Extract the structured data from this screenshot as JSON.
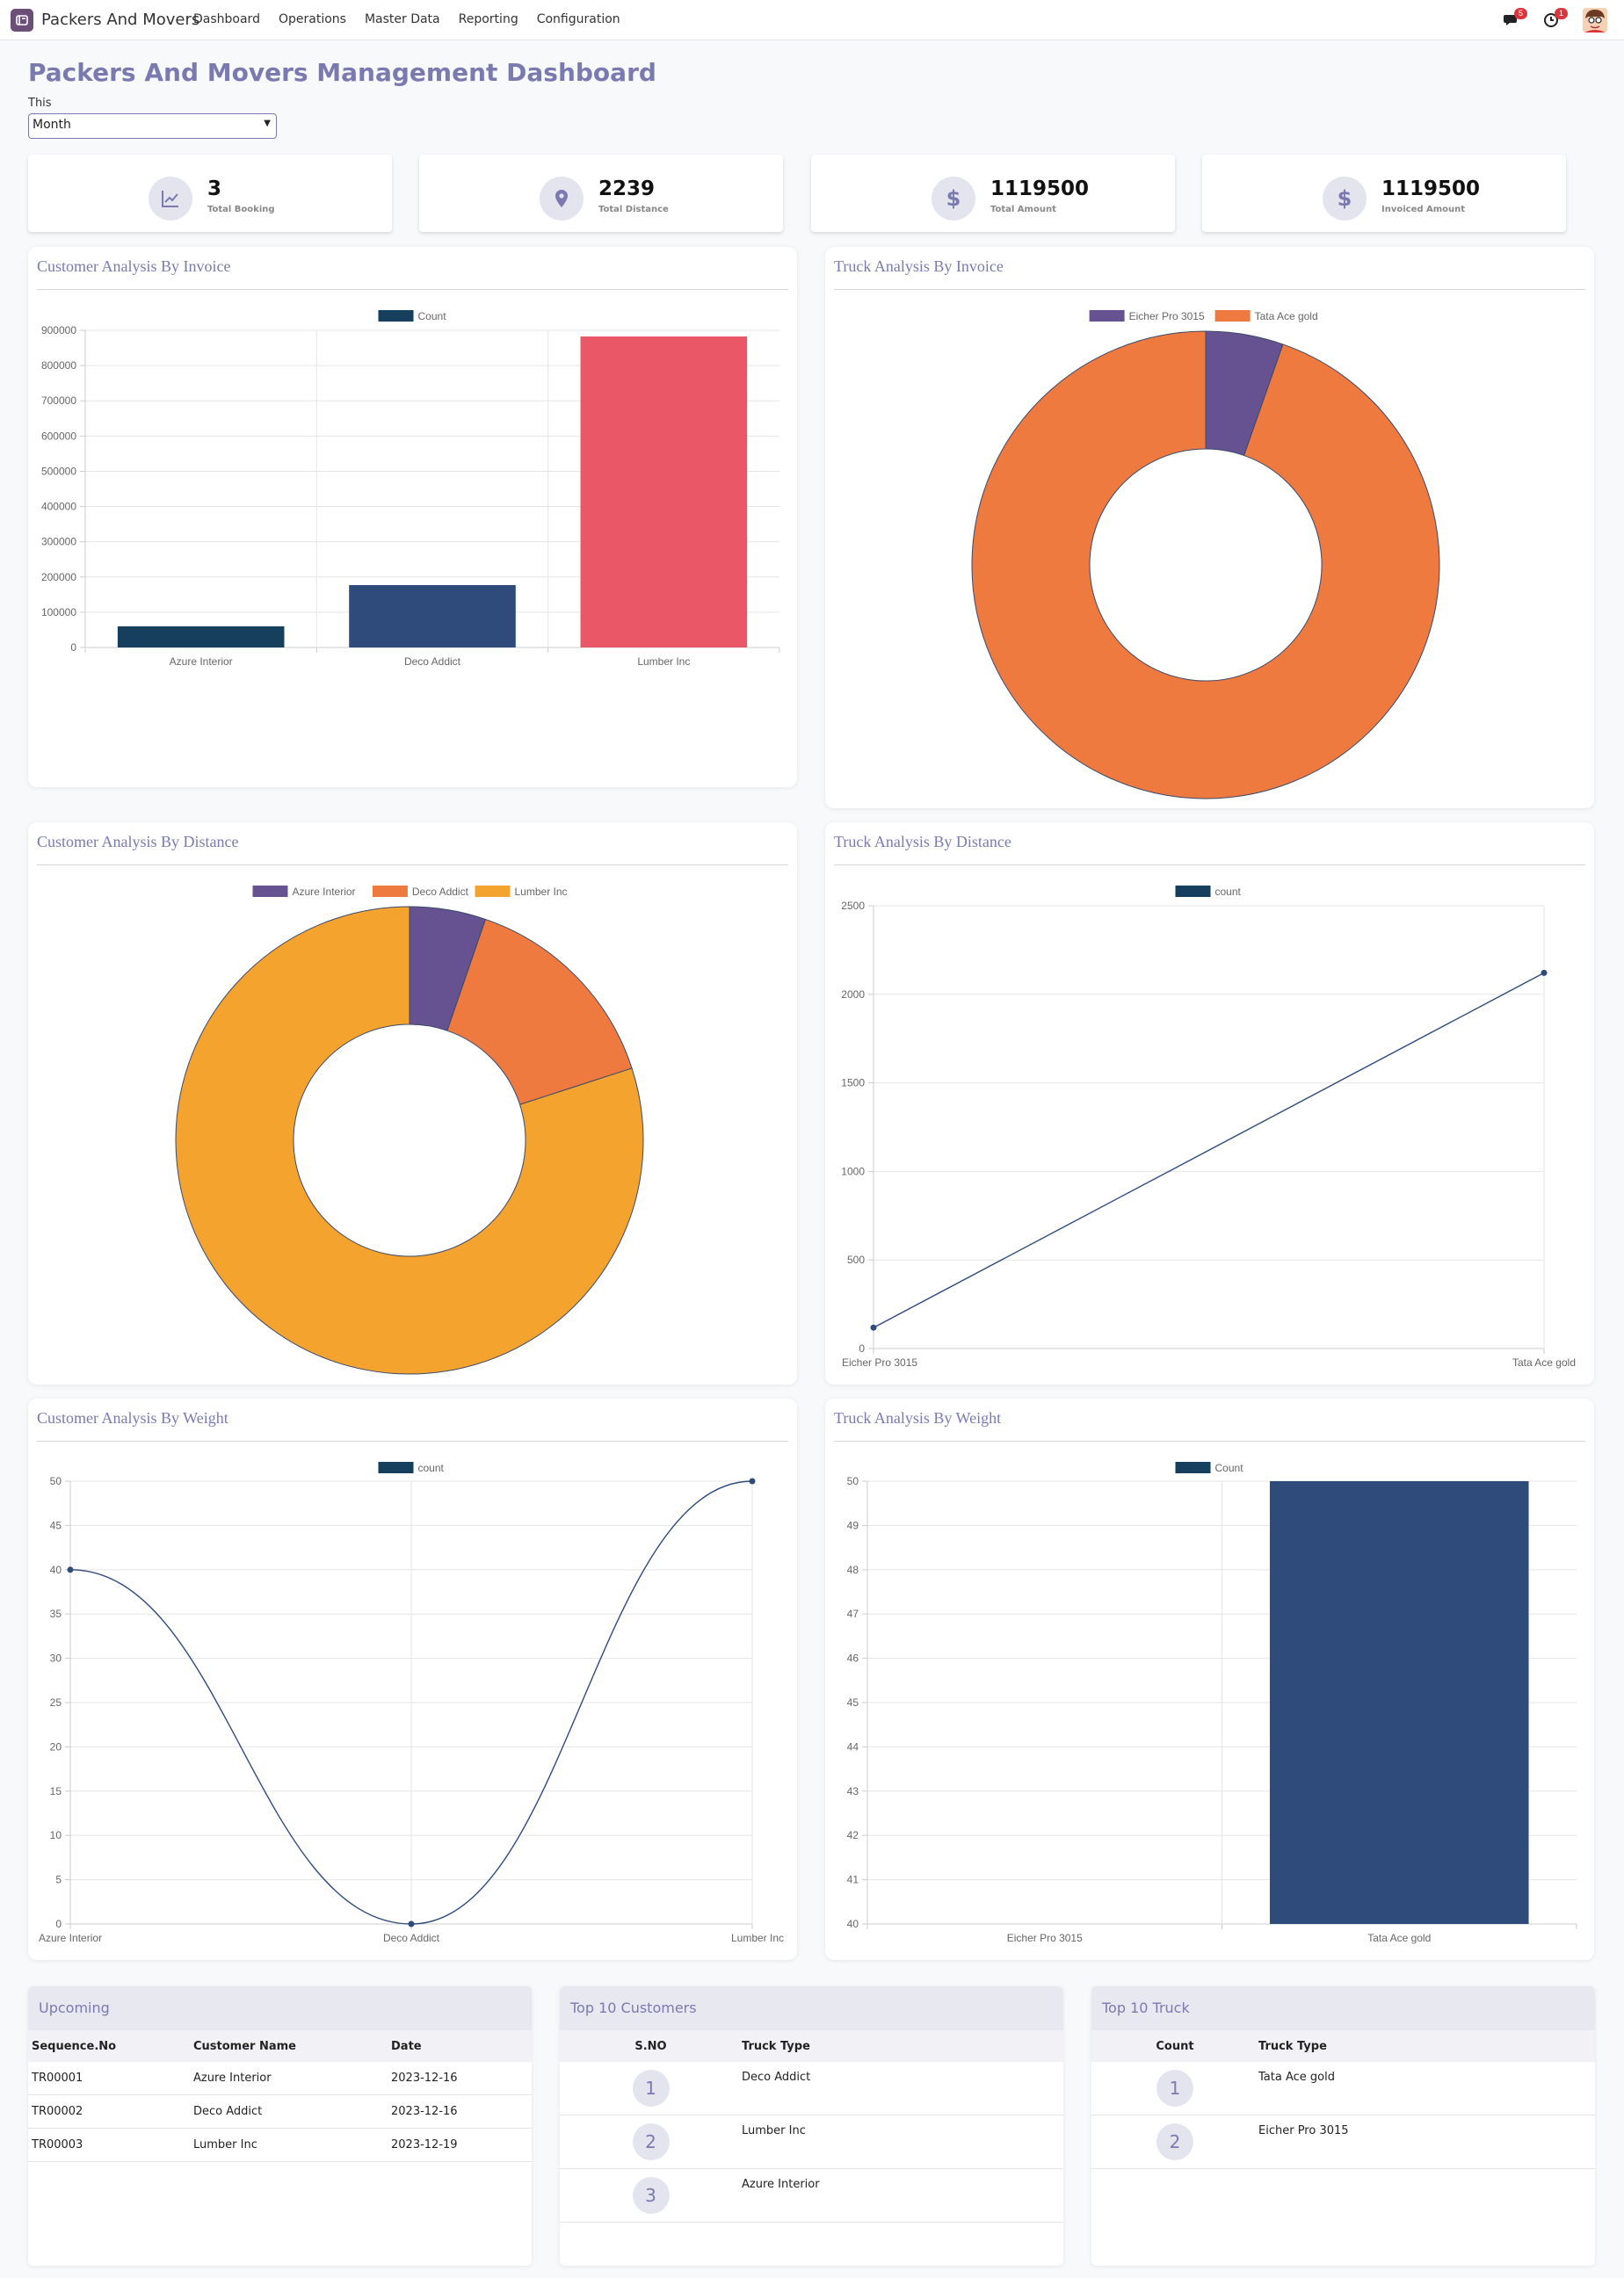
{
  "app": {
    "name": "Packers And Movers",
    "menu": [
      "Dashboard",
      "Operations",
      "Master Data",
      "Reporting",
      "Configuration"
    ],
    "chat_badge": "5",
    "activity_badge": "1"
  },
  "page": {
    "title": "Packers And Movers Management Dashboard",
    "filter_label": "This",
    "filter_value": "Month"
  },
  "kpis": [
    {
      "value": "3",
      "label": "Total Booking",
      "icon": "chart-line-icon"
    },
    {
      "value": "2239",
      "label": "Total Distance",
      "icon": "map-pin-icon"
    },
    {
      "value": "1119500",
      "label": "Total Amount",
      "icon": "dollar-icon"
    },
    {
      "value": "1119500",
      "label": "Invoiced Amount",
      "icon": "dollar-icon"
    }
  ],
  "colors": {
    "accent": "#7a7ab0",
    "navy": "#163f5e",
    "blue": "#2f4b7c",
    "red": "#ea5867",
    "purple": "#665191",
    "orange": "#ee7a40",
    "amber": "#f4a32e"
  },
  "chart_titles": {
    "c1": "Customer Analysis By Invoice",
    "c2": "Truck Analysis By Invoice",
    "c3": "Customer Analysis By Distance",
    "c4": "Truck Analysis By Distance",
    "c5": "Customer Analysis By Weight",
    "c6": "Truck Analysis By Weight"
  },
  "chart_data": [
    {
      "type": "bar",
      "title": "Customer Analysis By Invoice",
      "legend": [
        "Count"
      ],
      "categories": [
        "Azure Interior",
        "Deco Addict",
        "Lumber Inc"
      ],
      "values": [
        60000,
        177000,
        882500
      ],
      "colors": [
        "#163f5e",
        "#2f4b7c",
        "#ea5867"
      ],
      "ylim": [
        0,
        900000
      ],
      "yticks": [
        0,
        100000,
        200000,
        300000,
        400000,
        500000,
        600000,
        700000,
        800000,
        900000
      ],
      "grid": true,
      "legend_position": "top"
    },
    {
      "type": "pie",
      "title": "Truck Analysis By Invoice",
      "labels": [
        "Eicher Pro 3015",
        "Tata Ace gold"
      ],
      "values": [
        60000,
        1059500
      ],
      "colors": [
        "#665191",
        "#ee7a40"
      ],
      "donut": true,
      "legend_position": "top"
    },
    {
      "type": "pie",
      "title": "Customer Analysis By Distance",
      "labels": [
        "Azure Interior",
        "Deco Addict",
        "Lumber Inc"
      ],
      "values": [
        118,
        330,
        1791
      ],
      "colors": [
        "#665191",
        "#ee7a40",
        "#f4a32e"
      ],
      "donut": true,
      "legend_position": "top"
    },
    {
      "type": "line",
      "title": "Truck Analysis By Distance",
      "legend": [
        "count"
      ],
      "categories": [
        "Eicher Pro 3015",
        "Tata Ace gold"
      ],
      "values": [
        118,
        2121
      ],
      "ylim": [
        0,
        2500
      ],
      "yticks": [
        0,
        500,
        1000,
        1500,
        2000,
        2500
      ],
      "grid": true,
      "legend_position": "top"
    },
    {
      "type": "line",
      "title": "Customer Analysis By Weight",
      "legend": [
        "count"
      ],
      "categories": [
        "Azure Interior",
        "Deco Addict",
        "Lumber Inc"
      ],
      "values": [
        40,
        0,
        50
      ],
      "ylim": [
        0,
        50
      ],
      "yticks": [
        0,
        5,
        10,
        15,
        20,
        25,
        30,
        35,
        40,
        45,
        50
      ],
      "grid": true,
      "smooth": true,
      "legend_position": "top"
    },
    {
      "type": "bar",
      "title": "Truck Analysis By Weight",
      "legend": [
        "Count"
      ],
      "categories": [
        "Eicher Pro 3015",
        "Tata Ace gold"
      ],
      "values": [
        40,
        50
      ],
      "colors": [
        "#2f4b7c",
        "#2f4b7c"
      ],
      "ylim": [
        40,
        50
      ],
      "yticks": [
        40,
        41,
        42,
        43,
        44,
        45,
        46,
        47,
        48,
        49,
        50
      ],
      "grid": true,
      "legend_position": "top"
    }
  ],
  "upcoming": {
    "title": "Upcoming",
    "headers": [
      "Sequence.No",
      "Customer Name",
      "Date"
    ],
    "rows": [
      [
        "TR00001",
        "Azure Interior",
        "2023-12-16"
      ],
      [
        "TR00002",
        "Deco Addict",
        "2023-12-16"
      ],
      [
        "TR00003",
        "Lumber Inc",
        "2023-12-19"
      ]
    ]
  },
  "top_customers": {
    "title": "Top 10 Customers",
    "headers": [
      "S.NO",
      "Truck Type"
    ],
    "rows": [
      [
        "1",
        "Deco Addict"
      ],
      [
        "2",
        "Lumber Inc"
      ],
      [
        "3",
        "Azure Interior"
      ]
    ]
  },
  "top_trucks": {
    "title": "Top 10 Truck",
    "headers": [
      "Count",
      "Truck Type"
    ],
    "rows": [
      [
        "1",
        "Tata Ace gold"
      ],
      [
        "2",
        "Eicher Pro 3015"
      ]
    ]
  }
}
